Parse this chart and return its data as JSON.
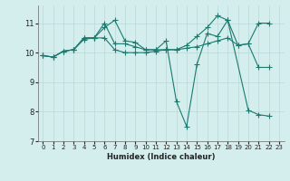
{
  "xlabel": "Humidex (Indice chaleur)",
  "bg_color": "#d4eeee",
  "grid_color": "#b8d8d8",
  "line_color": "#1a7a6e",
  "xlim": [
    -0.5,
    23.5
  ],
  "ylim": [
    7,
    11.6
  ],
  "yticks": [
    7,
    8,
    9,
    10,
    11
  ],
  "xticks": [
    0,
    1,
    2,
    3,
    4,
    5,
    6,
    7,
    8,
    9,
    10,
    11,
    12,
    13,
    14,
    15,
    16,
    17,
    18,
    19,
    20,
    21,
    22,
    23
  ],
  "lines": [
    {
      "x": [
        0,
        1,
        2,
        3,
        4,
        5,
        6,
        7,
        8,
        9,
        10,
        11,
        12,
        13,
        14,
        15,
        16,
        17,
        18,
        19,
        20,
        21,
        22
      ],
      "y": [
        9.9,
        9.85,
        10.05,
        10.1,
        10.5,
        10.5,
        10.85,
        11.1,
        10.4,
        10.35,
        10.1,
        10.1,
        10.1,
        10.1,
        10.25,
        10.55,
        10.85,
        11.25,
        11.1,
        10.25,
        10.3,
        11.0,
        11.0
      ]
    },
    {
      "x": [
        0,
        1,
        2,
        3,
        4,
        5,
        6,
        7,
        8,
        9,
        10,
        11,
        12,
        13,
        14,
        15,
        16,
        17,
        18,
        20,
        21,
        22
      ],
      "y": [
        9.9,
        9.85,
        10.05,
        10.1,
        10.5,
        10.5,
        11.0,
        10.3,
        10.3,
        10.2,
        10.1,
        10.1,
        10.4,
        8.35,
        7.5,
        9.6,
        10.65,
        10.55,
        11.1,
        8.05,
        7.9,
        7.85
      ]
    },
    {
      "x": [
        0,
        1,
        2,
        3,
        4,
        5,
        6,
        7,
        8,
        9,
        10,
        11,
        12,
        13,
        14,
        15,
        16,
        17,
        18,
        19,
        20,
        21,
        22
      ],
      "y": [
        9.9,
        9.85,
        10.05,
        10.1,
        10.45,
        10.5,
        10.5,
        10.1,
        10.0,
        10.0,
        10.0,
        10.05,
        10.1,
        10.1,
        10.15,
        10.2,
        10.3,
        10.4,
        10.5,
        10.25,
        10.3,
        9.5,
        9.5
      ]
    }
  ]
}
